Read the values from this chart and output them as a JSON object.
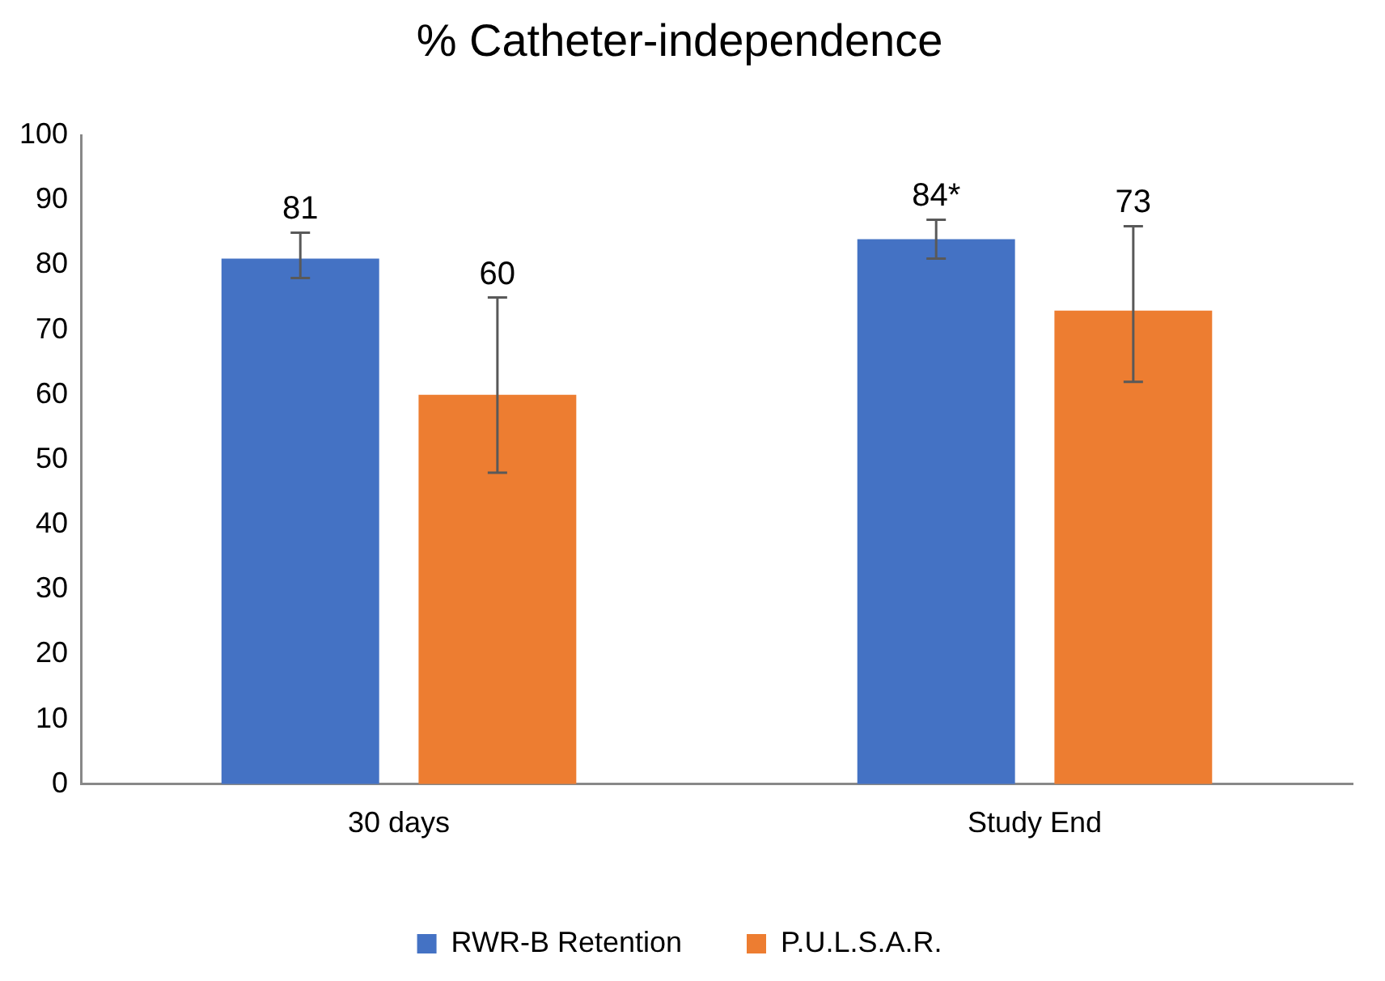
{
  "chart_data": {
    "type": "bar",
    "title": "% Catheter-independence",
    "categories": [
      "30 days",
      "Study End"
    ],
    "series": [
      {
        "name": "RWR-B Retention",
        "color": "#4472c4",
        "values": [
          81,
          84
        ],
        "errors": [
          [
            78,
            85
          ],
          [
            81,
            87
          ]
        ],
        "value_labels": [
          "81",
          "84*"
        ]
      },
      {
        "name": "P.U.L.S.A.R.",
        "color": "#ed7d31",
        "values": [
          60,
          73
        ],
        "errors": [
          [
            48,
            75
          ],
          [
            62,
            86
          ]
        ],
        "value_labels": [
          "60",
          "73"
        ]
      }
    ],
    "ylim": [
      0,
      100
    ],
    "yticks": [
      0,
      10,
      20,
      30,
      40,
      50,
      60,
      70,
      80,
      90,
      100
    ],
    "grid": false,
    "legend": "bottom"
  }
}
